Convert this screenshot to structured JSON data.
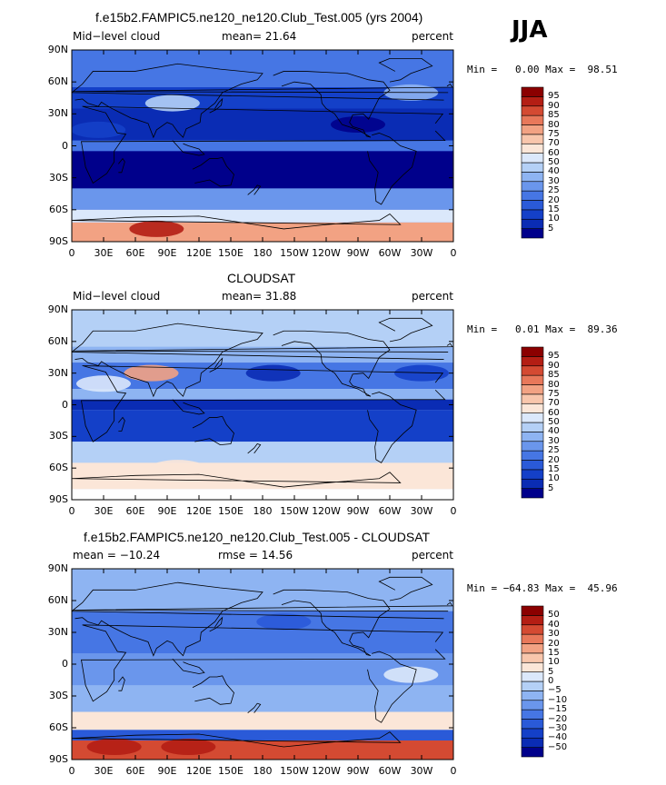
{
  "season": "JJA",
  "panels": [
    {
      "title": "f.e15b2.FAMPIC5.ne120_ne120.Club_Test.005 (yrs 2004)",
      "left_label": "Mid−level cloud",
      "center_label": "mean=  21.64",
      "right_label": "percent",
      "minmax": "Min =   0.00 Max =  98.51",
      "colorbar_levels": [
        "95",
        "90",
        "85",
        "80",
        "75",
        "70",
        "60",
        "50",
        "40",
        "30",
        "25",
        "20",
        "15",
        "10",
        "5"
      ]
    },
    {
      "title": "CLOUDSAT",
      "left_label": "Mid−level cloud",
      "center_label": "mean=  31.88",
      "right_label": "percent",
      "minmax": "Min =   0.01 Max =  89.36",
      "colorbar_levels": [
        "95",
        "90",
        "85",
        "80",
        "75",
        "70",
        "60",
        "50",
        "40",
        "30",
        "25",
        "20",
        "15",
        "10",
        "5"
      ]
    },
    {
      "title": "f.e15b2.FAMPIC5.ne120_ne120.Club_Test.005 - CLOUDSAT",
      "left_label": "mean = −10.24",
      "center_label": "rmse =  14.56",
      "right_label": "percent",
      "minmax": "Min = −64.83 Max =  45.96",
      "colorbar_levels": [
        "50",
        "40",
        "30",
        "20",
        "15",
        "10",
        "5",
        "0",
        "−5",
        "−10",
        "−15",
        "−20",
        "−30",
        "−40",
        "−50"
      ]
    }
  ],
  "lat_ticks": [
    "90N",
    "60N",
    "30N",
    "0",
    "30S",
    "60S",
    "90S"
  ],
  "lon_ticks": [
    "0",
    "30E",
    "60E",
    "90E",
    "120E",
    "150E",
    "180",
    "150W",
    "120W",
    "90W",
    "60W",
    "30W",
    "0"
  ],
  "colors": {
    "abs_scale": [
      "#00008b",
      "#0a2cb4",
      "#1440c8",
      "#2a5ad8",
      "#4676e4",
      "#6a96ec",
      "#8eb4f2",
      "#b4d0f6",
      "#dbe8fb",
      "#fbe6d8",
      "#f8c6ac",
      "#f2a283",
      "#e8785a",
      "#d44a32",
      "#b41e14",
      "#8b0000"
    ],
    "diff_scale": [
      "#00008b",
      "#0a2cb4",
      "#1440c8",
      "#2a5ad8",
      "#4676e4",
      "#6a96ec",
      "#8eb4f2",
      "#b4d0f6",
      "#dbe8fb",
      "#fbe6d8",
      "#f8c6ac",
      "#f2a283",
      "#e8785a",
      "#d44a32",
      "#b41e14",
      "#8b0000"
    ]
  }
}
